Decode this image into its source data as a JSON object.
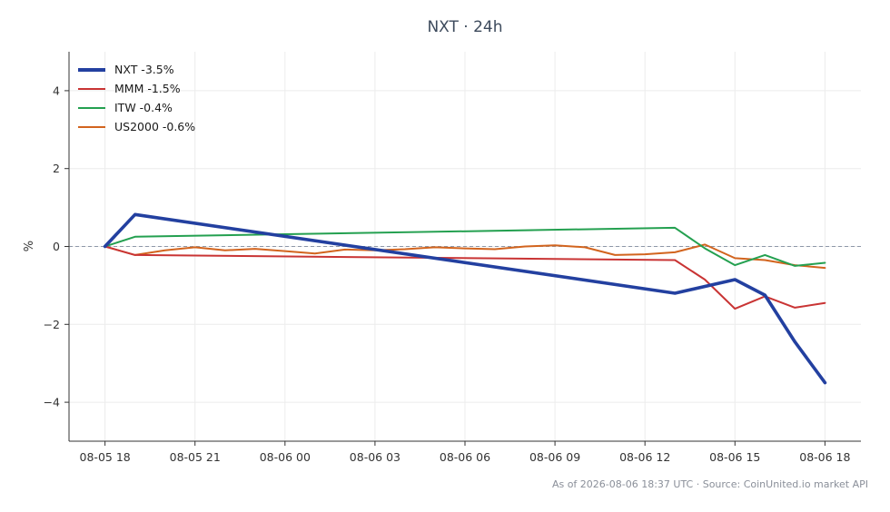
{
  "footer": {
    "as_of": "As of 2026-08-06 18:37 UTC",
    "separator": " · ",
    "source": "Source: CoinUnited.io market API"
  },
  "chart_data": {
    "type": "line",
    "title": "NXT · 24h",
    "xlabel": "",
    "ylabel": "%",
    "ylim": [
      -5,
      5
    ],
    "yticks": [
      -4,
      -2,
      0,
      2,
      4
    ],
    "ytick_labels": [
      "−4",
      "−2",
      "0",
      "2",
      "4"
    ],
    "x_ticks": [
      "08-05 18",
      "08-05 21",
      "08-06 00",
      "08-06 03",
      "08-06 06",
      "08-06 09",
      "08-06 12",
      "08-06 15",
      "08-06 18"
    ],
    "x_range": [
      "08-05 16:48",
      "08-06 19:12"
    ],
    "grid": true,
    "zero_line": true,
    "legend_position": "top-left",
    "series": [
      {
        "name": "NXT -3.5%",
        "color": "#2340a0",
        "width": 3.6,
        "points": [
          [
            "08-05 18:00",
            0
          ],
          [
            "08-05 19:00",
            0.82
          ],
          [
            "08-06 13:00",
            -1.2
          ],
          [
            "08-06 15:00",
            -0.85
          ],
          [
            "08-06 16:00",
            -1.25
          ],
          [
            "08-06 17:00",
            -2.45
          ],
          [
            "08-06 18:00",
            -3.5
          ]
        ]
      },
      {
        "name": "MMM -1.5%",
        "color": "#c93434",
        "width": 2,
        "points": [
          [
            "08-05 18:00",
            0
          ],
          [
            "08-05 19:00",
            -0.22
          ],
          [
            "08-06 13:00",
            -0.35
          ],
          [
            "08-06 14:00",
            -0.85
          ],
          [
            "08-06 15:00",
            -1.6
          ],
          [
            "08-06 16:00",
            -1.28
          ],
          [
            "08-06 17:00",
            -1.57
          ],
          [
            "08-06 18:00",
            -1.45
          ]
        ]
      },
      {
        "name": "ITW -0.4%",
        "color": "#24a050",
        "width": 2,
        "points": [
          [
            "08-05 18:00",
            0
          ],
          [
            "08-05 19:00",
            0.25
          ],
          [
            "08-06 13:00",
            0.48
          ],
          [
            "08-06 14:00",
            -0.05
          ],
          [
            "08-06 15:00",
            -0.48
          ],
          [
            "08-06 16:00",
            -0.22
          ],
          [
            "08-06 17:00",
            -0.5
          ],
          [
            "08-06 18:00",
            -0.42
          ]
        ]
      },
      {
        "name": "US2000 -0.6%",
        "color": "#d2641e",
        "width": 2,
        "points": [
          [
            "08-05 18:00",
            0
          ],
          [
            "08-05 19:00",
            -0.22
          ],
          [
            "08-05 20:00",
            -0.1
          ],
          [
            "08-05 21:00",
            -0.02
          ],
          [
            "08-05 22:00",
            -0.1
          ],
          [
            "08-05 23:00",
            -0.06
          ],
          [
            "08-06 00:00",
            -0.12
          ],
          [
            "08-06 01:00",
            -0.18
          ],
          [
            "08-06 02:00",
            -0.08
          ],
          [
            "08-06 03:00",
            -0.1
          ],
          [
            "08-06 04:00",
            -0.07
          ],
          [
            "08-06 05:00",
            -0.02
          ],
          [
            "08-06 06:00",
            -0.05
          ],
          [
            "08-06 07:00",
            -0.07
          ],
          [
            "08-06 08:00",
            0.0
          ],
          [
            "08-06 09:00",
            0.03
          ],
          [
            "08-06 10:00",
            -0.02
          ],
          [
            "08-06 11:00",
            -0.22
          ],
          [
            "08-06 12:00",
            -0.2
          ],
          [
            "08-06 13:00",
            -0.15
          ],
          [
            "08-06 14:00",
            0.05
          ],
          [
            "08-06 15:00",
            -0.3
          ],
          [
            "08-06 16:00",
            -0.35
          ],
          [
            "08-06 17:00",
            -0.48
          ],
          [
            "08-06 18:00",
            -0.55
          ]
        ]
      }
    ]
  }
}
